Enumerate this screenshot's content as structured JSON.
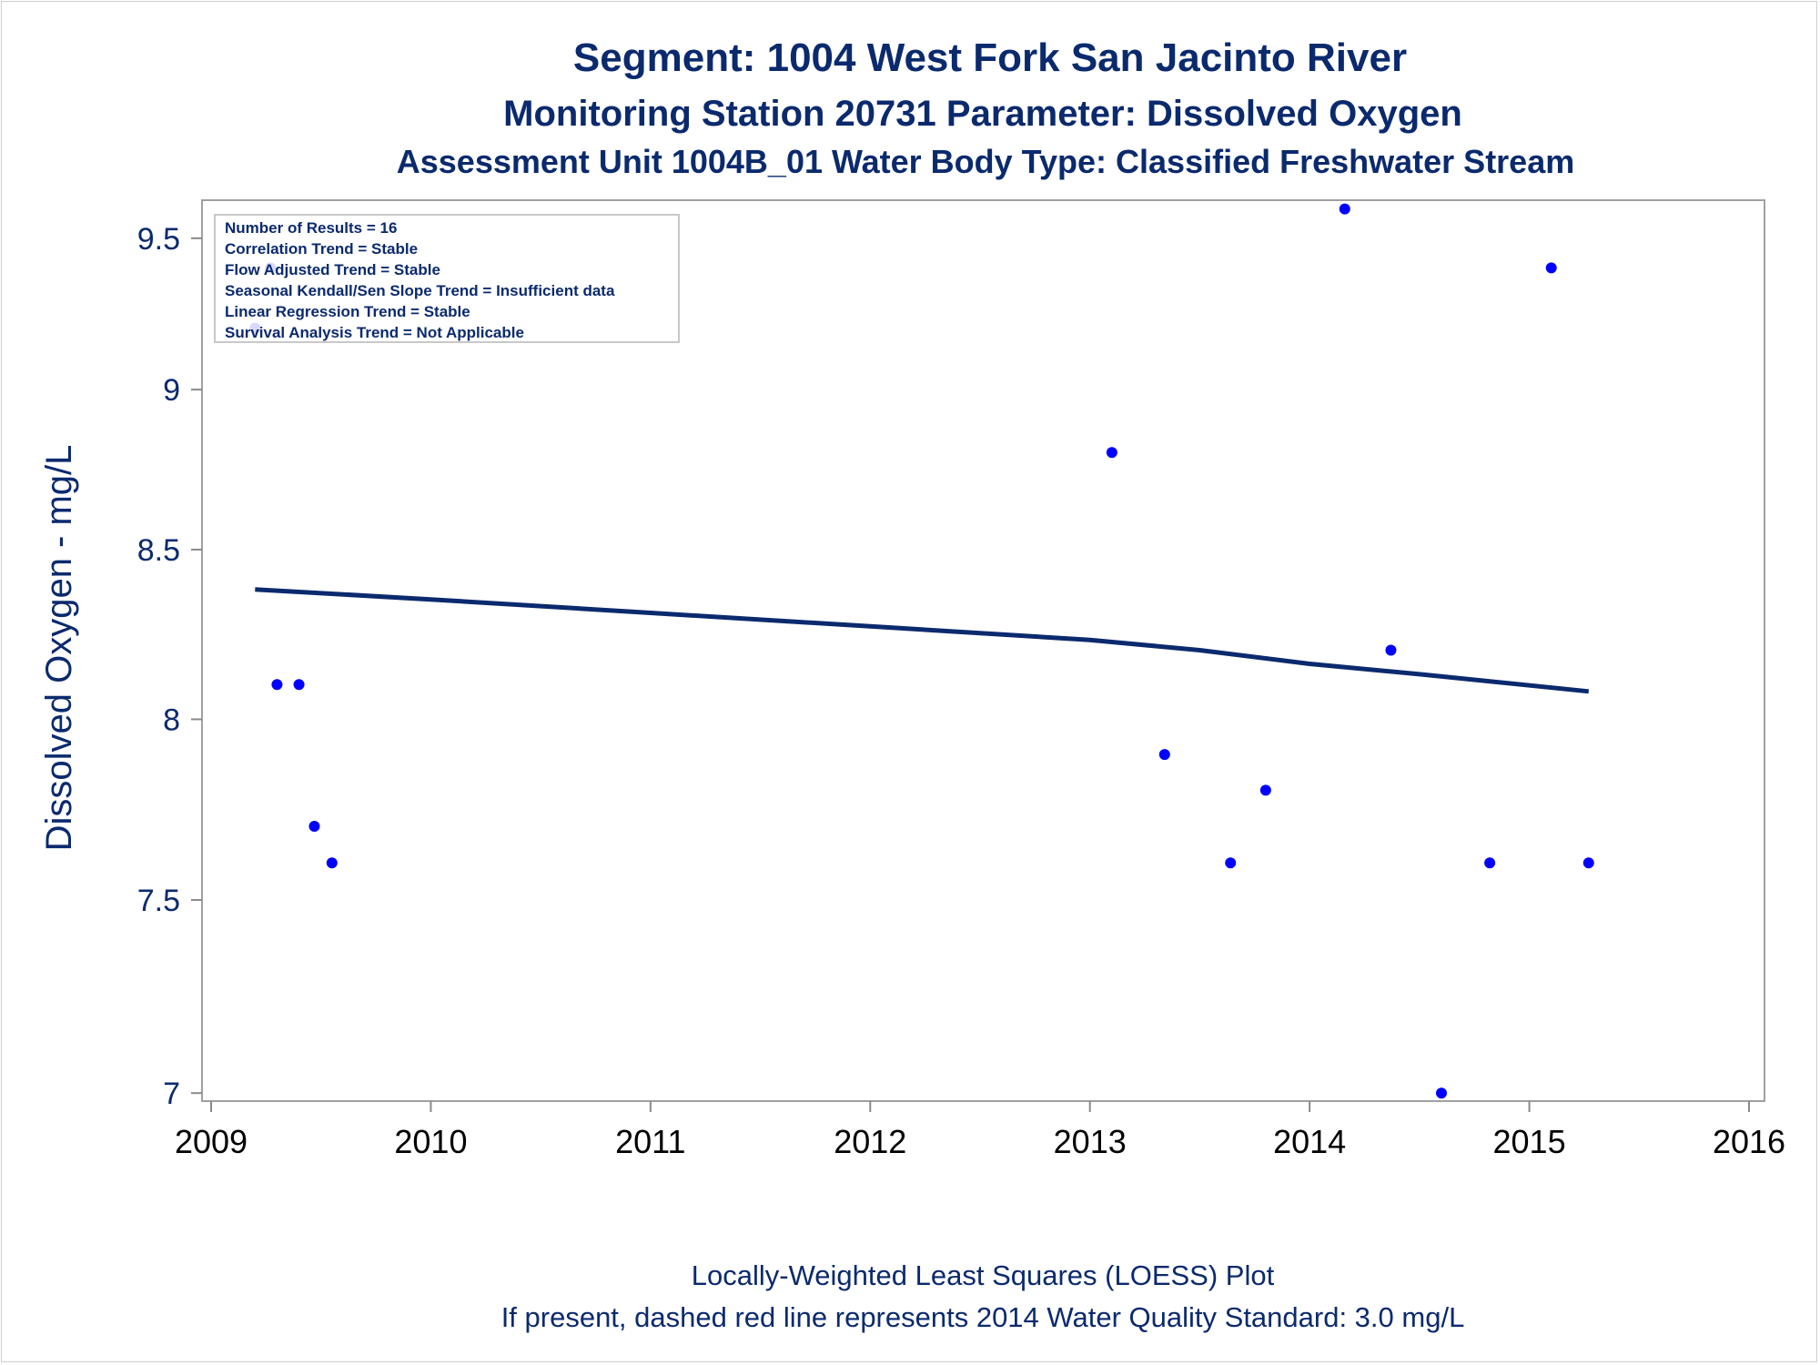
{
  "chart_data": {
    "type": "scatter",
    "title": "Segment: 1004  West Fork San Jacinto River",
    "subtitle": "Monitoring Station 20731 Parameter: Dissolved Oxygen",
    "subtitle2": "Assessment Unit 1004B_01   Water Body Type: Classified Freshwater Stream",
    "ylabel": "Dissolved Oxygen - mg/L",
    "xlabel": "",
    "xlim": [
      2009,
      2016
    ],
    "ylim": [
      6.98,
      9.63
    ],
    "x_ticks": [
      2009,
      2010,
      2011,
      2012,
      2013,
      2014,
      2015,
      2016
    ],
    "y_ticks": [
      {
        "value": 7,
        "label": "7"
      },
      {
        "value": 7.5,
        "label": "7.5"
      },
      {
        "value": 8,
        "label": "8"
      },
      {
        "value": 8.5,
        "label": "8.5"
      },
      {
        "value": 9,
        "label": "9"
      },
      {
        "value": 9.5,
        "label": "9.5"
      }
    ],
    "y_scale": "log",
    "grid": false,
    "legend": {
      "placement": "top-left",
      "lines": [
        "Number of Results = 16",
        "Correlation Trend = Stable",
        "Flow Adjusted Trend = Stable",
        "Seasonal Kendall/Sen Slope Trend = Insufficient data",
        "Linear Regression Trend = Stable",
        "Survival Analysis Trend = Not Applicable"
      ]
    },
    "series": [
      {
        "type": "scatter",
        "color": "#0000ff",
        "points": [
          {
            "x": 2009.2,
            "y": 9.2
          },
          {
            "x": 2009.27,
            "y": 9.4
          },
          {
            "x": 2009.3,
            "y": 8.1
          },
          {
            "x": 2009.4,
            "y": 8.1
          },
          {
            "x": 2009.47,
            "y": 7.7
          },
          {
            "x": 2009.55,
            "y": 7.6
          },
          {
            "x": 2013.1,
            "y": 8.8
          },
          {
            "x": 2013.34,
            "y": 7.9
          },
          {
            "x": 2013.64,
            "y": 7.6
          },
          {
            "x": 2013.8,
            "y": 7.8
          },
          {
            "x": 2014.16,
            "y": 9.6
          },
          {
            "x": 2014.37,
            "y": 8.2
          },
          {
            "x": 2014.6,
            "y": 7.0
          },
          {
            "x": 2014.82,
            "y": 7.6
          },
          {
            "x": 2015.1,
            "y": 9.4
          },
          {
            "x": 2015.27,
            "y": 7.6
          }
        ]
      },
      {
        "type": "line",
        "color": "#0b2a6e",
        "points": [
          {
            "x": 2009.2,
            "y": 8.38
          },
          {
            "x": 2010.0,
            "y": 8.35
          },
          {
            "x": 2011.0,
            "y": 8.31
          },
          {
            "x": 2012.0,
            "y": 8.27
          },
          {
            "x": 2013.0,
            "y": 8.23
          },
          {
            "x": 2013.5,
            "y": 8.2
          },
          {
            "x": 2014.0,
            "y": 8.16
          },
          {
            "x": 2014.5,
            "y": 8.13
          },
          {
            "x": 2015.27,
            "y": 8.08
          }
        ]
      }
    ],
    "footnotes": [
      "Locally-Weighted Least Squares (LOESS) Plot",
      "If present, dashed red line represents 2014 Water Quality Standard: 3.0 mg/L"
    ]
  }
}
